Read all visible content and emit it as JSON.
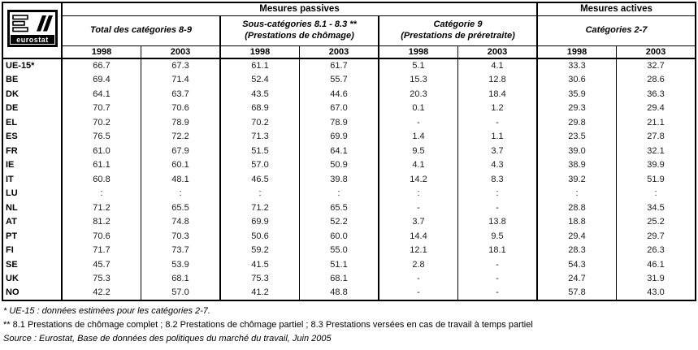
{
  "logo": {
    "text": "eurostat"
  },
  "table": {
    "top_headers": [
      {
        "label": "Mesures passives"
      },
      {
        "label": "Mesures actives"
      }
    ],
    "groups": [
      {
        "line1": "Total des catégories 8-9",
        "line2": ""
      },
      {
        "line1": "Sous-catégories 8.1 - 8.3 **",
        "line2": "(Prestations de chômage)"
      },
      {
        "line1": "Catégorie 9",
        "line2": "(Prestations de préretraite)"
      },
      {
        "line1": "Catégories 2-7",
        "line2": ""
      }
    ],
    "year_headers": [
      "1998",
      "2003",
      "1998",
      "2003",
      "1998",
      "2003",
      "1998",
      "2003"
    ],
    "rows": [
      {
        "country": "UE-15*",
        "values": [
          "66.7",
          "67.3",
          "61.1",
          "61.7",
          "5.1",
          "4.1",
          "33.3",
          "32.7"
        ]
      },
      {
        "country": "BE",
        "values": [
          "69.4",
          "71.4",
          "52.4",
          "55.7",
          "15.3",
          "12.8",
          "30.6",
          "28.6"
        ]
      },
      {
        "country": "DK",
        "values": [
          "64.1",
          "63.7",
          "43.5",
          "44.6",
          "20.3",
          "18.4",
          "35.9",
          "36.3"
        ]
      },
      {
        "country": "DE",
        "values": [
          "70.7",
          "70.6",
          "68.9",
          "67.0",
          "0.1",
          "1.2",
          "29.3",
          "29.4"
        ]
      },
      {
        "country": "EL",
        "values": [
          "70.2",
          "78.9",
          "70.2",
          "78.9",
          "-",
          "-",
          "29.8",
          "21.1"
        ]
      },
      {
        "country": "ES",
        "values": [
          "76.5",
          "72.2",
          "71.3",
          "69.9",
          "1.4",
          "1.1",
          "23.5",
          "27.8"
        ]
      },
      {
        "country": "FR",
        "values": [
          "61.0",
          "67.9",
          "51.5",
          "64.1",
          "9.5",
          "3.7",
          "39.0",
          "32.1"
        ]
      },
      {
        "country": "IE",
        "values": [
          "61.1",
          "60.1",
          "57.0",
          "50.9",
          "4.1",
          "4.3",
          "38.9",
          "39.9"
        ]
      },
      {
        "country": "IT",
        "values": [
          "60.8",
          "48.1",
          "46.5",
          "39.8",
          "14.2",
          "8.3",
          "39.2",
          "51.9"
        ]
      },
      {
        "country": "LU",
        "values": [
          ":",
          ":",
          ":",
          ":",
          ":",
          ":",
          ":",
          ":"
        ]
      },
      {
        "country": "NL",
        "values": [
          "71.2",
          "65.5",
          "71.2",
          "65.5",
          "-",
          "-",
          "28.8",
          "34.5"
        ]
      },
      {
        "country": "AT",
        "values": [
          "81.2",
          "74.8",
          "69.9",
          "52.2",
          "3.7",
          "13.8",
          "18.8",
          "25.2"
        ]
      },
      {
        "country": "PT",
        "values": [
          "70.6",
          "70.3",
          "50.6",
          "60.0",
          "14.4",
          "9.5",
          "29.4",
          "29.7"
        ]
      },
      {
        "country": "FI",
        "values": [
          "71.7",
          "73.7",
          "59.2",
          "55.0",
          "12.1",
          "18.1",
          "28.3",
          "26.3"
        ]
      },
      {
        "country": "SE",
        "values": [
          "45.7",
          "53.9",
          "41.5",
          "51.1",
          "2.8",
          "-",
          "54.3",
          "46.1"
        ]
      },
      {
        "country": "UK",
        "values": [
          "75.3",
          "68.1",
          "75.3",
          "68.1",
          "-",
          "-",
          "24.7",
          "31.9"
        ]
      },
      {
        "country": "NO",
        "values": [
          "42.2",
          "57.0",
          "41.2",
          "48.8",
          "-",
          "-",
          "57.8",
          "43.0"
        ]
      }
    ]
  },
  "footnotes": [
    "* UE-15 : données estimées pour les catégories 2-7.",
    "** 8.1 Prestations de chômage complet ; 8.2 Prestations de chômage partiel ; 8.3 Prestations versées en cas de travail à temps partiel",
    "Source : Eurostat, Base de données des politiques du marché du travail, Juin 2005"
  ]
}
